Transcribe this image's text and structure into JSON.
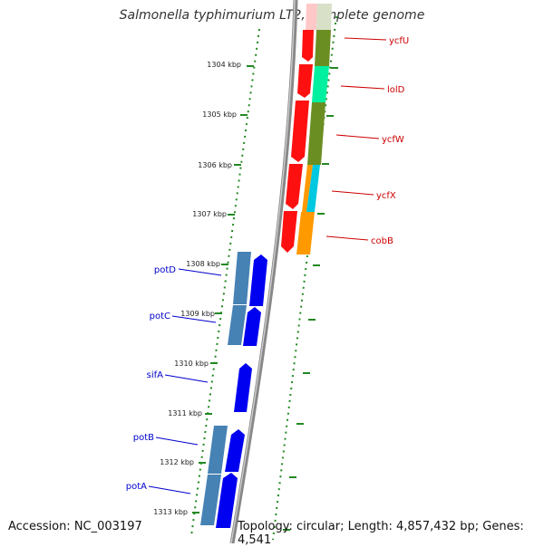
{
  "title": "Salmonella typhimurium LT2, complete genome",
  "footer": {
    "accession": "Accession: NC_003197",
    "summary": "Topology: circular; Length: 4,857,432 bp; Genes: 4,541"
  },
  "kbp_labels": [
    "1304 kbp",
    "1305 kbp",
    "1306 kbp",
    "1307 kbp",
    "1308 kbp",
    "1309 kbp",
    "1310 kbp",
    "1311 kbp",
    "1312 kbp",
    "1313 kbp"
  ],
  "genes_right": [
    "ycfU",
    "lolD",
    "ycfW",
    "ycfX",
    "cobB"
  ],
  "genes_left": [
    "potD",
    "potC",
    "sifA",
    "potB",
    "potA"
  ],
  "colors": {
    "backbone": "#888888",
    "dots": "#228822",
    "right_strand": "#ff0000",
    "left_strand": "#0000ee",
    "right_label": "#cc0000",
    "left_label": "#0000cc",
    "cog_pink": "#ffc8c8",
    "cog_grey": "#d8e0c8",
    "cog_mint": "#00f0a0",
    "cog_olive": "#6b8e23",
    "cog_cyan": "#00c8e0",
    "cog_orange": "#ff9900",
    "cog_steel": "#4682b4"
  }
}
